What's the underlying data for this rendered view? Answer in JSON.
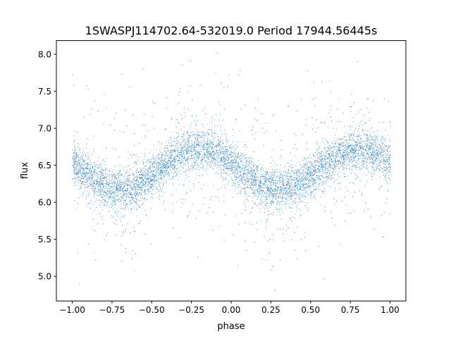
{
  "chart_data": {
    "type": "scatter",
    "title": "1SWASPJ114702.64-532019.0 Period 17944.56445s",
    "xlabel": "phase",
    "ylabel": "flux",
    "xlim": [
      -1.1,
      1.1
    ],
    "ylim": [
      4.667,
      8.185
    ],
    "xticks": [
      -1.0,
      -0.75,
      -0.5,
      -0.25,
      0.0,
      0.25,
      0.5,
      0.75,
      1.0
    ],
    "xtick_labels": [
      "−1.00",
      "−0.75",
      "−0.50",
      "−0.25",
      "0.00",
      "0.25",
      "0.50",
      "0.75",
      "1.00"
    ],
    "yticks": [
      5.0,
      5.5,
      6.0,
      6.5,
      7.0,
      7.5,
      8.0
    ],
    "ytick_labels": [
      "5.0",
      "5.5",
      "6.0",
      "6.5",
      "7.0",
      "7.5",
      "8.0"
    ],
    "grid": false,
    "series": [
      {
        "name": "flux",
        "color": "#1f77b4",
        "model": {
          "description": "phase-folded light curve, approx flux = mean + amplitude*cos(2*pi*(phase - phase_of_max))",
          "mean": 6.45,
          "amplitude": 0.27,
          "phase_of_max": 0.8,
          "phase_of_min": 0.3,
          "scatter_sigma": 0.14,
          "outlier_fraction": 0.12,
          "phase_range": [
            -1.0,
            1.0
          ],
          "flux_range": [
            4.8,
            8.05
          ],
          "n_points_approx": 7000
        }
      }
    ]
  }
}
